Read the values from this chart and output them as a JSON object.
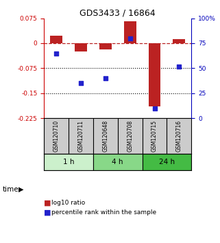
{
  "title": "GDS3433 / 16864",
  "samples": [
    "GSM120710",
    "GSM120711",
    "GSM120648",
    "GSM120708",
    "GSM120715",
    "GSM120716"
  ],
  "log10_ratio": [
    0.022,
    -0.025,
    -0.018,
    0.065,
    -0.19,
    0.012
  ],
  "percentile_rank": [
    65,
    35,
    40,
    80,
    10,
    52
  ],
  "ylim_left": [
    -0.225,
    0.075
  ],
  "ylim_right": [
    0,
    100
  ],
  "yticks_left": [
    0.075,
    0.0,
    -0.075,
    -0.15,
    -0.225
  ],
  "yticks_right": [
    100,
    75,
    50,
    25,
    0
  ],
  "ytick_labels_left": [
    "0.075",
    "0",
    "-0.075",
    "-0.15",
    "-0.225"
  ],
  "ytick_labels_right": [
    "100%",
    "75",
    "50",
    "25",
    "0"
  ],
  "time_groups": [
    {
      "label": "1 h",
      "start": 0,
      "end": 2,
      "color": "#ccf0cc"
    },
    {
      "label": "4 h",
      "start": 2,
      "end": 4,
      "color": "#88d888"
    },
    {
      "label": "24 h",
      "start": 4,
      "end": 6,
      "color": "#44bb44"
    }
  ],
  "bar_color": "#bb2222",
  "dot_color": "#2222cc",
  "bar_width": 0.5,
  "dot_size": 25,
  "left_axis_color": "#cc0000",
  "right_axis_color": "#0000bb",
  "background_color": "#ffffff",
  "sample_label_bg": "#cccccc",
  "legend_bar_label": "log10 ratio",
  "legend_dot_label": "percentile rank within the sample",
  "time_label": "time"
}
